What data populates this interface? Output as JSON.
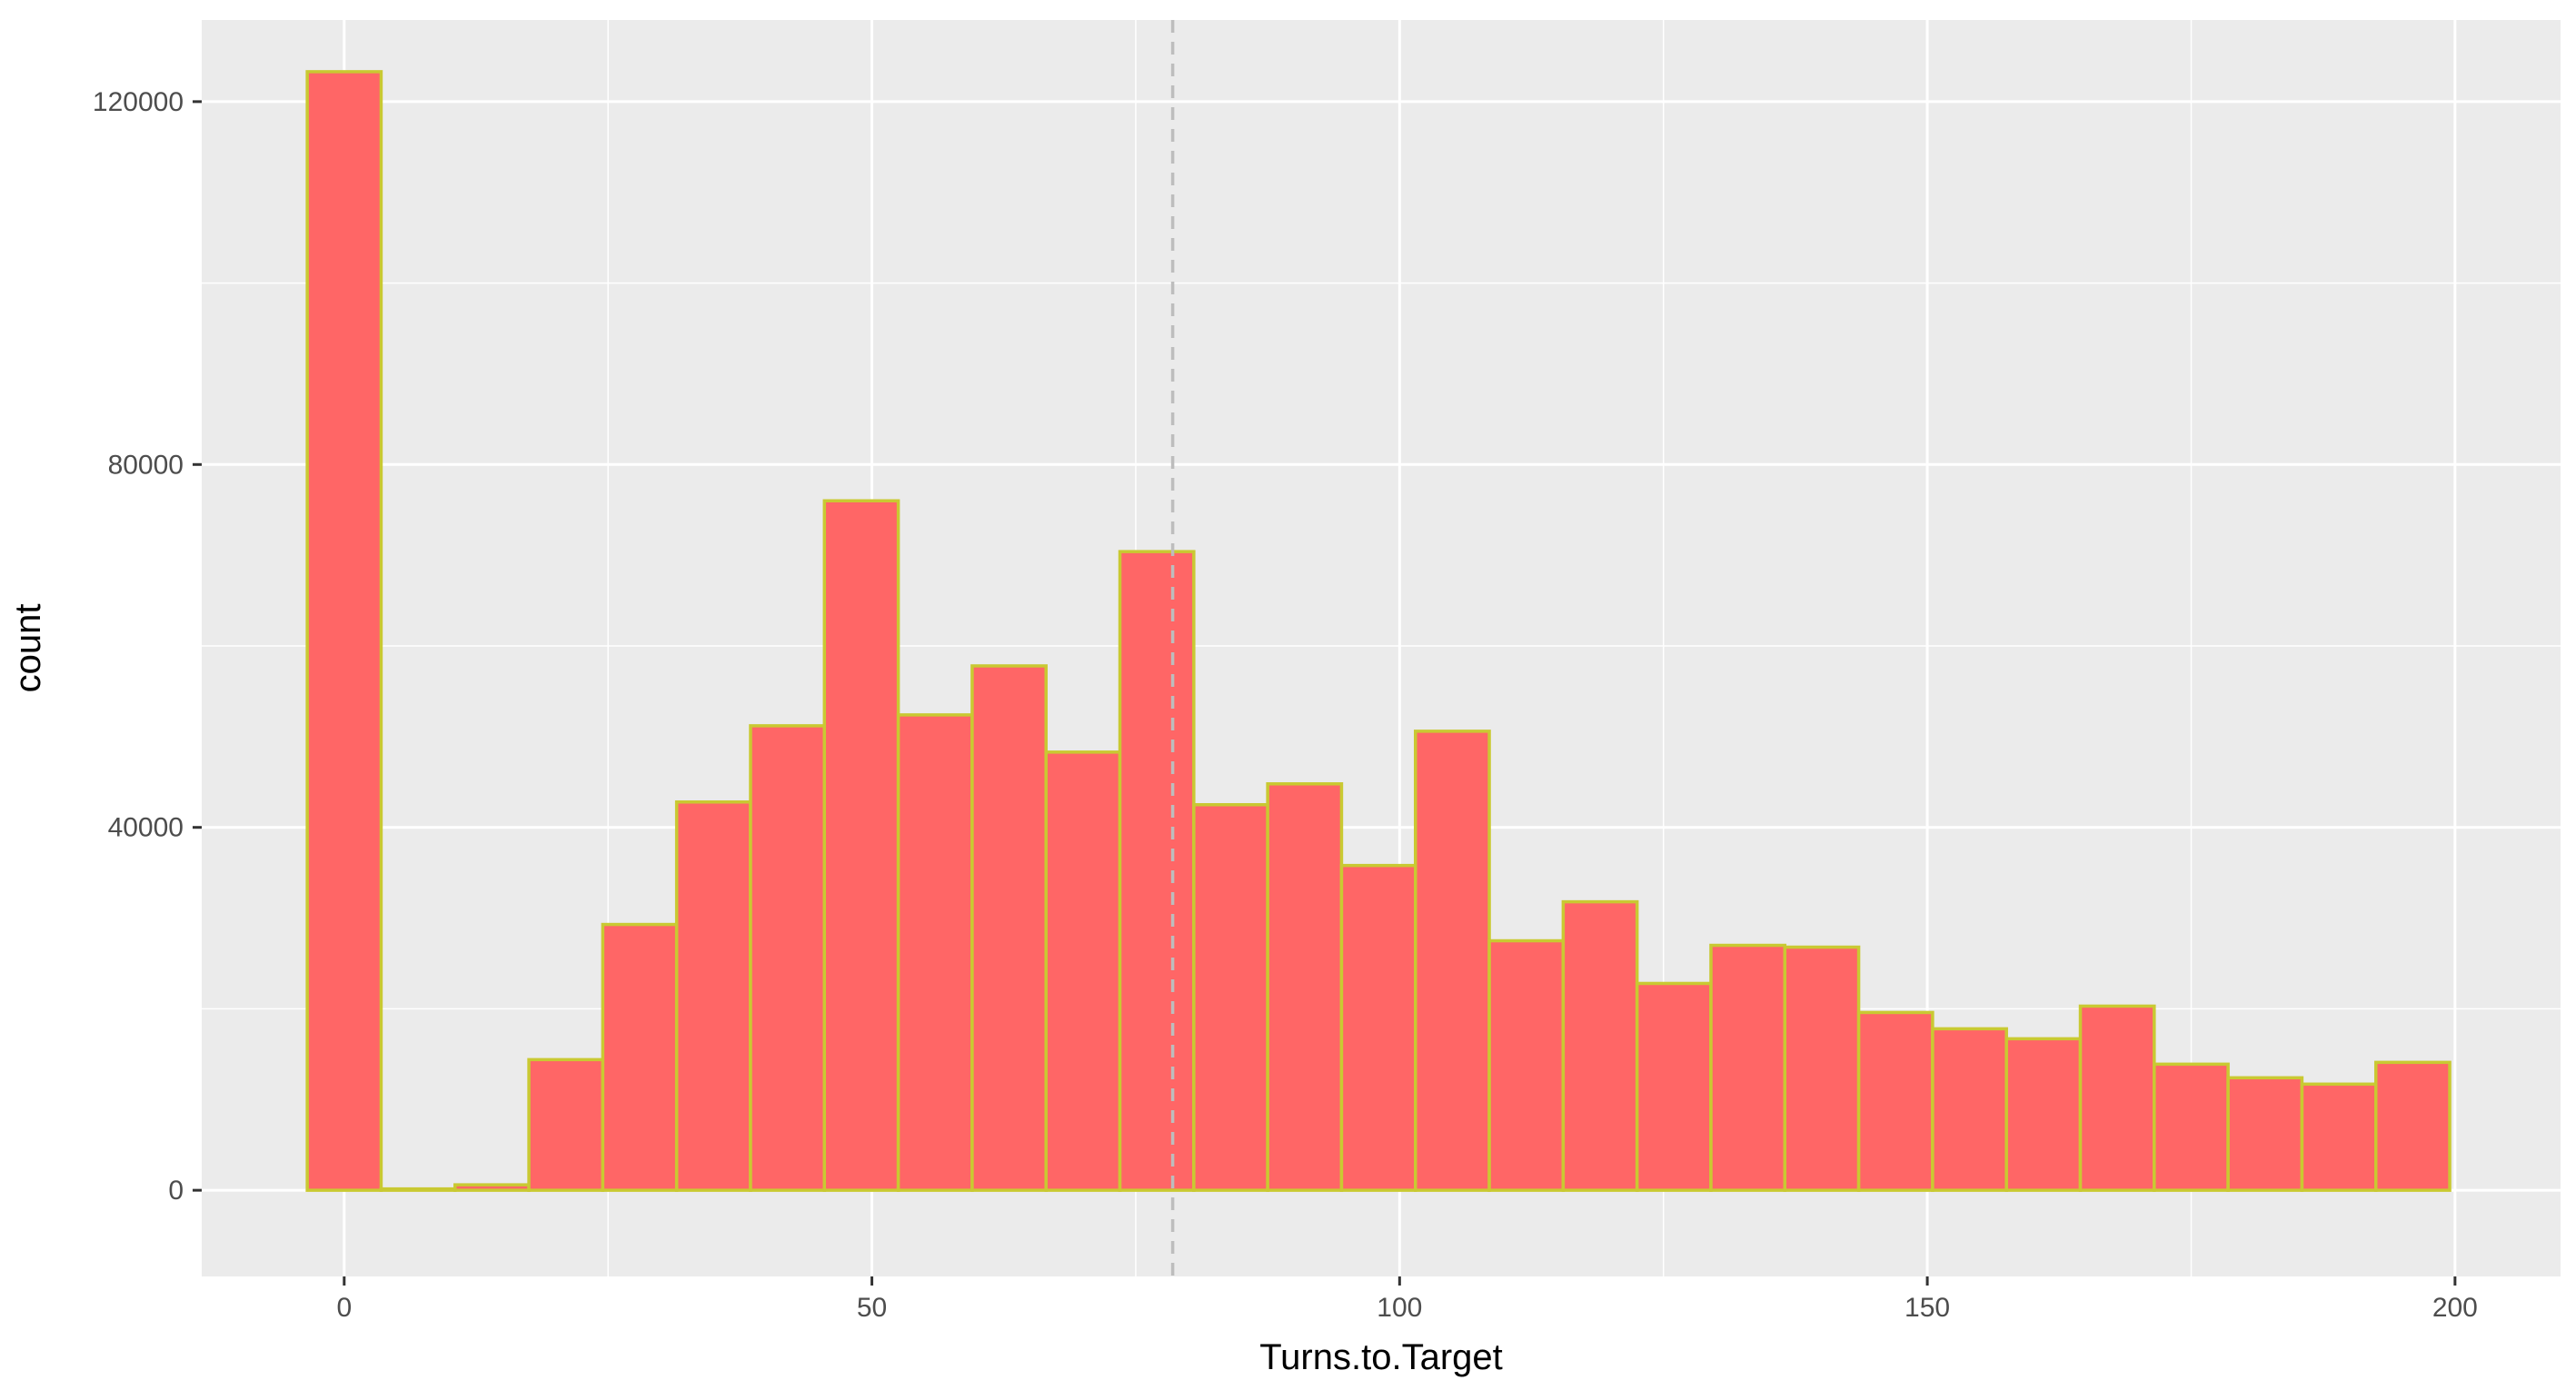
{
  "chart_data": {
    "type": "bar",
    "subtype": "histogram",
    "xlabel": "Turns.to.Target",
    "ylabel": "count",
    "xlim": [
      -13.5,
      210
    ],
    "ylim": [
      -9500,
      129000
    ],
    "x_ticks": [
      0,
      50,
      100,
      150,
      200
    ],
    "y_ticks": [
      0,
      40000,
      80000,
      120000
    ],
    "x_tick_labels": [
      "0",
      "50",
      "100",
      "150",
      "200"
    ],
    "y_tick_labels": [
      "0",
      "40000",
      "80000",
      "120000"
    ],
    "x_minor_ticks": [
      25,
      75,
      125,
      175
    ],
    "y_minor_ticks": [
      20000,
      60000,
      100000
    ],
    "bin_width": 7,
    "bins": [
      {
        "x0": -3.5,
        "x1": 3.5,
        "count": 123300
      },
      {
        "x0": 3.5,
        "x1": 10.5,
        "count": 150
      },
      {
        "x0": 10.5,
        "x1": 17.5,
        "count": 600
      },
      {
        "x0": 17.5,
        "x1": 24.5,
        "count": 14400
      },
      {
        "x0": 24.5,
        "x1": 31.5,
        "count": 29300
      },
      {
        "x0": 31.5,
        "x1": 38.5,
        "count": 42800
      },
      {
        "x0": 38.5,
        "x1": 45.5,
        "count": 51200
      },
      {
        "x0": 45.5,
        "x1": 52.5,
        "count": 76000
      },
      {
        "x0": 52.5,
        "x1": 59.5,
        "count": 52400
      },
      {
        "x0": 59.5,
        "x1": 66.5,
        "count": 57800
      },
      {
        "x0": 66.5,
        "x1": 73.5,
        "count": 48300
      },
      {
        "x0": 73.5,
        "x1": 80.5,
        "count": 70400
      },
      {
        "x0": 80.5,
        "x1": 87.5,
        "count": 42500
      },
      {
        "x0": 87.5,
        "x1": 94.5,
        "count": 44800
      },
      {
        "x0": 94.5,
        "x1": 101.5,
        "count": 35800
      },
      {
        "x0": 101.5,
        "x1": 108.5,
        "count": 50600
      },
      {
        "x0": 108.5,
        "x1": 115.5,
        "count": 27500
      },
      {
        "x0": 115.5,
        "x1": 122.5,
        "count": 31800
      },
      {
        "x0": 122.5,
        "x1": 129.5,
        "count": 22800
      },
      {
        "x0": 129.5,
        "x1": 136.5,
        "count": 27000
      },
      {
        "x0": 136.5,
        "x1": 143.5,
        "count": 26800
      },
      {
        "x0": 143.5,
        "x1": 150.5,
        "count": 19600
      },
      {
        "x0": 150.5,
        "x1": 157.5,
        "count": 17800
      },
      {
        "x0": 157.5,
        "x1": 164.5,
        "count": 16700
      },
      {
        "x0": 164.5,
        "x1": 171.5,
        "count": 20300
      },
      {
        "x0": 171.5,
        "x1": 178.5,
        "count": 13900
      },
      {
        "x0": 178.5,
        "x1": 185.5,
        "count": 12400
      },
      {
        "x0": 185.5,
        "x1": 192.5,
        "count": 11700
      },
      {
        "x0": 192.5,
        "x1": 199.5,
        "count": 14100
      }
    ],
    "reference_line": {
      "x": 78.5,
      "style": "dashed",
      "color": "#bdbdbd"
    },
    "colors": {
      "bar_fill": "#ff6666",
      "bar_outline": "#c9c932",
      "panel_background": "#ebebeb",
      "grid": "#ffffff"
    },
    "grid": true,
    "legend": "none"
  }
}
